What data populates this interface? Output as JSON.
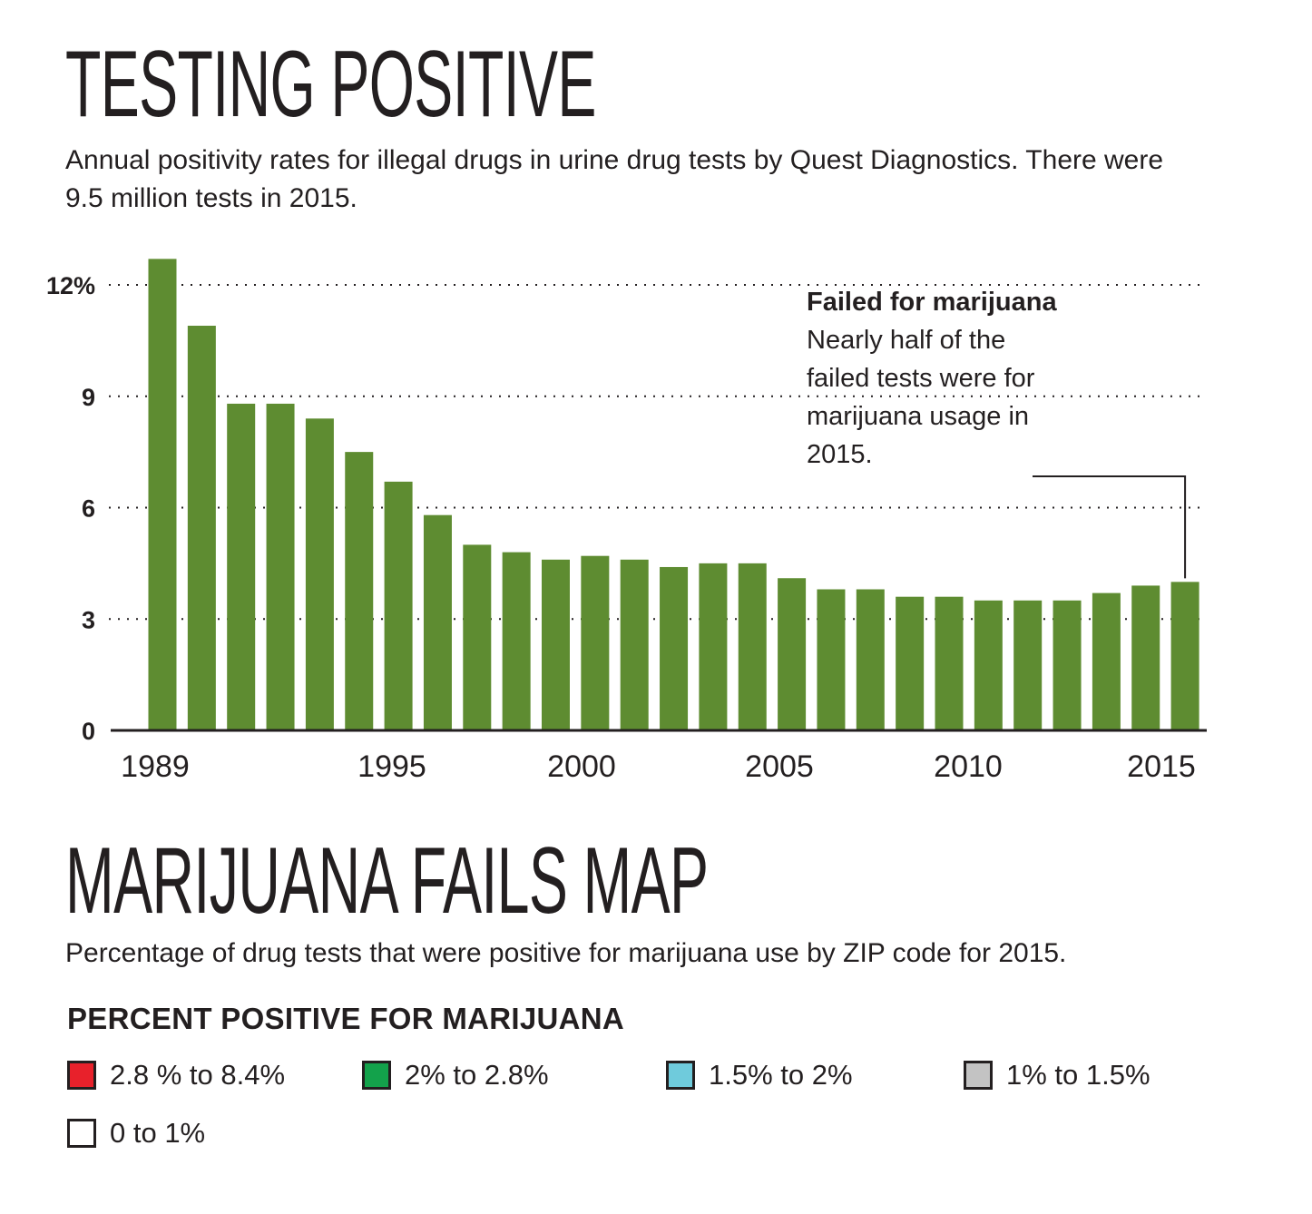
{
  "title": "TESTING POSITIVE",
  "subtitle": "Annual positivity rates for illegal drugs in urine drug tests by Quest Diagnostics. There were 9.5 million tests in 2015.",
  "chart_data": {
    "type": "bar",
    "x": [
      1989,
      1990,
      1991,
      1992,
      1993,
      1994,
      1995,
      1996,
      1997,
      1998,
      1999,
      2000,
      2001,
      2002,
      2003,
      2004,
      2005,
      2006,
      2007,
      2008,
      2009,
      2010,
      2011,
      2012,
      2013,
      2014,
      2015
    ],
    "values": [
      12.7,
      10.9,
      8.8,
      8.8,
      8.4,
      7.5,
      6.7,
      5.8,
      5.0,
      4.8,
      4.6,
      4.7,
      4.6,
      4.4,
      4.5,
      4.5,
      4.1,
      3.8,
      3.8,
      3.6,
      3.6,
      3.5,
      3.5,
      3.5,
      3.7,
      3.9,
      4.0
    ],
    "ylim": [
      0,
      13
    ],
    "yticks": [
      0,
      3,
      6,
      9,
      12
    ],
    "ytick_labels": [
      "0",
      "3",
      "6",
      "9",
      "12%"
    ],
    "xtick_labels": [
      "1989",
      "1995",
      "2000",
      "2005",
      "2010",
      "2015"
    ],
    "bar_color": "#5e8c31",
    "annotation": {
      "year": 2015,
      "title": "Failed for marijuana",
      "lines": [
        "Nearly half of the",
        "failed tests were for",
        "marijuana usage in",
        "2015."
      ]
    }
  },
  "map_section": {
    "title": "MARIJUANA FAILS MAP",
    "subtitle": "Percentage of drug tests that were positive for marijuana use by ZIP code for 2015.",
    "legend_title": "PERCENT POSITIVE FOR MARIJUANA",
    "legend": [
      {
        "label": "2.8 % to 8.4%",
        "color": "#e8212b"
      },
      {
        "label": "2% to 2.8%",
        "color": "#13a24b"
      },
      {
        "label": "1.5% to 2%",
        "color": "#6fcbdc"
      },
      {
        "label": "1% to 1.5%",
        "color": "#c3c3c3"
      },
      {
        "label": "0 to 1%",
        "color": "#ffffff"
      }
    ]
  }
}
